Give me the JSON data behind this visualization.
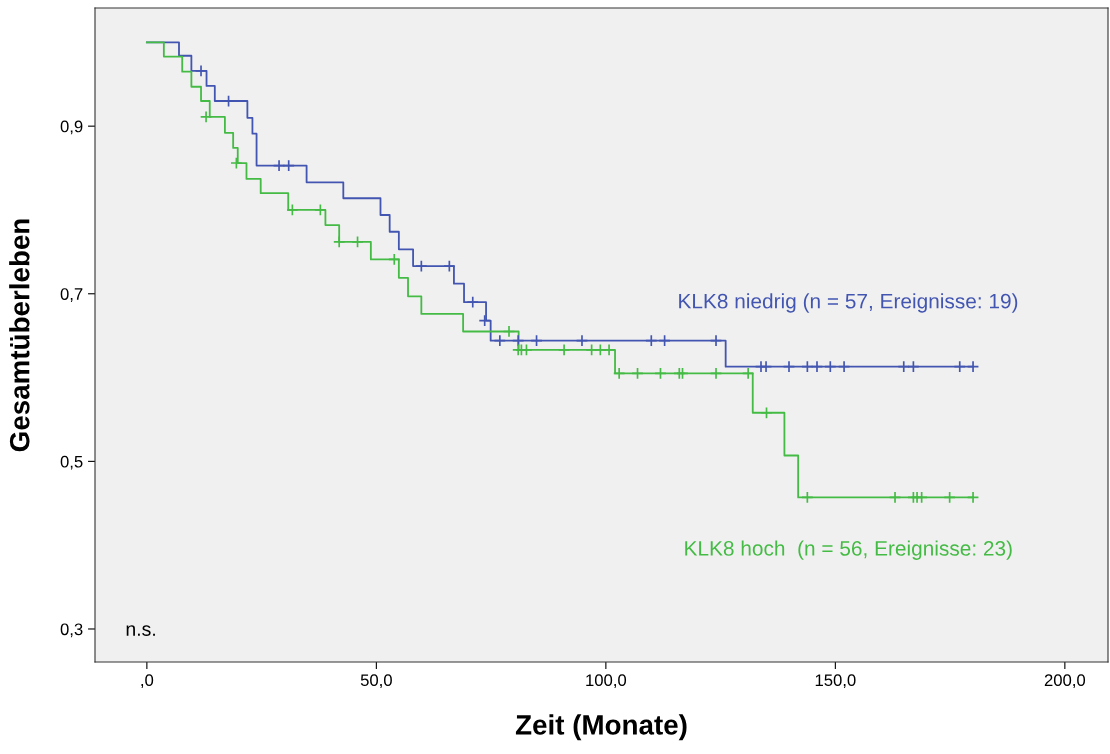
{
  "chart_data": {
    "type": "step",
    "xlabel": "Zeit (Monate)",
    "ylabel": "Gesamtüberleben",
    "xlim": [
      -11.3,
      209.4
    ],
    "ylim": [
      0.2606,
      1.041
    ],
    "xticks": [
      {
        "value": 0,
        "label": ",0"
      },
      {
        "value": 50,
        "label": "50,0"
      },
      {
        "value": 100,
        "label": "100,0"
      },
      {
        "value": 150,
        "label": "150,0"
      },
      {
        "value": 200,
        "label": "200,0"
      }
    ],
    "yticks": [
      {
        "value": 0.3,
        "label": "0,3"
      },
      {
        "value": 0.5,
        "label": "0,5"
      },
      {
        "value": 0.7,
        "label": "0,7"
      },
      {
        "value": 0.9,
        "label": "0,9"
      }
    ],
    "grid": false,
    "annotations": [
      "n.s."
    ],
    "series": [
      {
        "name": "KLK8 niedrig (n = 57, Ereignisse: 19)",
        "color": "#4255b0",
        "x": [
          0,
          7.0,
          9.7,
          13.0,
          14.8,
          21.9,
          23.0,
          23.9,
          34.8,
          42.8,
          50.9,
          52.9,
          54.9,
          58.0,
          66.9,
          69.1,
          73.9,
          74.9,
          126.1,
          180.0
        ],
        "values": [
          1.0,
          0.984,
          0.966,
          0.948,
          0.93,
          0.91,
          0.891,
          0.853,
          0.833,
          0.814,
          0.794,
          0.774,
          0.753,
          0.733,
          0.712,
          0.69,
          0.668,
          0.644,
          0.613,
          0.613
        ]
      },
      {
        "name": "KLK8 hoch  (n = 56, Ereignisse: 23)",
        "color": "#44bb44",
        "x": [
          0,
          3.7,
          7.7,
          9.7,
          11.8,
          13.7,
          17.0,
          18.8,
          19.8,
          21.7,
          24.8,
          30.8,
          38.9,
          41.9,
          48.8,
          54.9,
          56.9,
          59.8,
          68.9,
          81.0,
          102.0,
          132.0,
          138.9,
          141.9,
          180.0
        ],
        "values": [
          1.0,
          0.983,
          0.965,
          0.947,
          0.93,
          0.911,
          0.892,
          0.874,
          0.856,
          0.837,
          0.82,
          0.8,
          0.782,
          0.762,
          0.741,
          0.719,
          0.697,
          0.676,
          0.655,
          0.633,
          0.605,
          0.558,
          0.507,
          0.457,
          0.457
        ]
      },
      {
        "type": "scatter",
        "marker": "cross",
        "color": "#4255b0",
        "x": [
          11.8,
          17.8,
          28.8,
          30.9,
          59.8,
          65.9,
          71.0,
          73.6,
          76.9,
          80.9,
          84.9,
          94.8,
          109.9,
          112.8,
          124.0,
          133.8,
          134.9,
          139.9,
          143.9,
          146.0,
          148.9,
          151.9,
          164.9,
          167.0,
          177.1,
          180.0
        ],
        "values": [
          0.966,
          0.93,
          0.853,
          0.853,
          0.733,
          0.733,
          0.69,
          0.668,
          0.644,
          0.644,
          0.644,
          0.644,
          0.644,
          0.644,
          0.644,
          0.613,
          0.613,
          0.613,
          0.613,
          0.613,
          0.613,
          0.613,
          0.613,
          0.613,
          0.613,
          0.613
        ]
      },
      {
        "type": "scatter",
        "marker": "cross",
        "color": "#44bb44",
        "x": [
          12.9,
          19.5,
          31.7,
          37.8,
          41.9,
          45.9,
          53.9,
          78.9,
          80.9,
          81.6,
          82.7,
          90.9,
          96.9,
          98.8,
          100.7,
          102.9,
          106.9,
          111.9,
          116.0,
          116.7,
          124.0,
          131.0,
          135.0,
          143.9,
          163.0,
          167.0,
          167.8,
          168.8,
          174.9,
          180.0
        ],
        "values": [
          0.911,
          0.856,
          0.8,
          0.8,
          0.762,
          0.762,
          0.741,
          0.655,
          0.633,
          0.633,
          0.633,
          0.633,
          0.633,
          0.633,
          0.633,
          0.605,
          0.605,
          0.605,
          0.605,
          0.605,
          0.605,
          0.605,
          0.558,
          0.457,
          0.457,
          0.457,
          0.457,
          0.457,
          0.457,
          0.457
        ]
      }
    ]
  }
}
